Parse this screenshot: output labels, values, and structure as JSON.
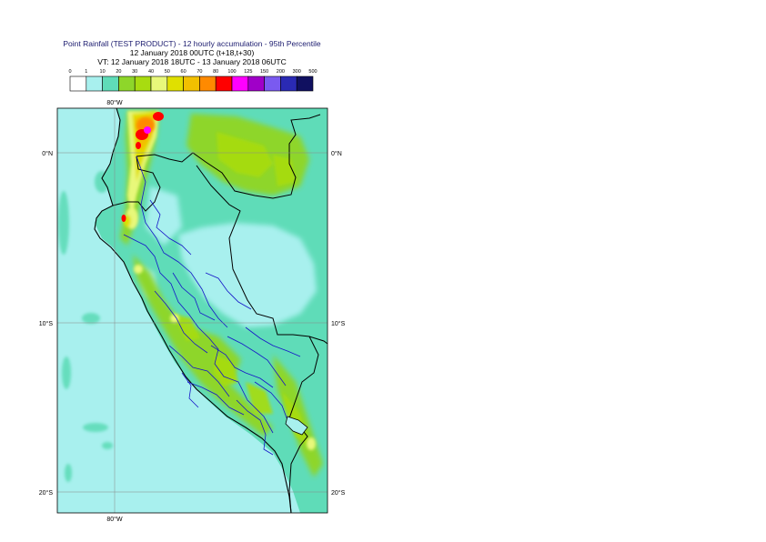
{
  "header": {
    "title_line1": "Point Rainfall (TEST PRODUCT) - 12 hourly accumulation - 95th Percentile",
    "title_line2": "12 January 2018 00UTC (t+18,t+30)",
    "title_line3": "VT: 12 January 2018 18UTC - 13 January 2018 06UTC"
  },
  "legend": {
    "thresholds": [
      "0",
      "1",
      "10",
      "20",
      "30",
      "40",
      "50",
      "60",
      "70",
      "80",
      "100",
      "125",
      "150",
      "200",
      "300",
      "500"
    ],
    "colors": [
      "#ffffff",
      "#a8f0ee",
      "#5fdcb8",
      "#8ed62a",
      "#a8dc10",
      "#e8f87a",
      "#e0e000",
      "#f2c000",
      "#ff8a00",
      "#ff0000",
      "#ff00ff",
      "#a000c8",
      "#7a5af0",
      "#2a2ab4",
      "#101060"
    ]
  },
  "map": {
    "lon_labels": [
      "80°W",
      "80°W"
    ],
    "lat_labels": [
      {
        "text": "0°N"
      },
      {
        "text": "10°S"
      },
      {
        "text": "20°S"
      }
    ],
    "ocean_color": "#a8f0ee",
    "land_border_color": "#000000",
    "region_border_color": "#1515c8"
  }
}
